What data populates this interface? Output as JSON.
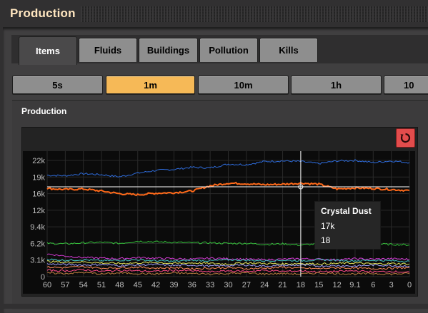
{
  "window": {
    "title": "Production"
  },
  "tabs": [
    {
      "label": "Items",
      "active": true
    },
    {
      "label": "Fluids",
      "active": false
    },
    {
      "label": "Buildings",
      "active": false
    },
    {
      "label": "Pollution",
      "active": false
    },
    {
      "label": "Kills",
      "active": false
    }
  ],
  "time_buttons": [
    {
      "label": "5s",
      "selected": false
    },
    {
      "label": "1m",
      "selected": true
    },
    {
      "label": "10m",
      "selected": false
    },
    {
      "label": "1h",
      "selected": false
    },
    {
      "label": "10",
      "selected": false
    }
  ],
  "panel": {
    "label": "Production",
    "reset_icon": "reset-icon"
  },
  "tooltip": {
    "title": "Crystal Dust",
    "value": "17k",
    "count": "18"
  },
  "colors": {
    "accent": "#f6b957",
    "reset": "#e24c4c",
    "blue": "#2e6bd9",
    "orange": "#ff6a1a",
    "green": "#34c23a"
  },
  "chart_data": {
    "type": "line",
    "xlabel": "",
    "ylabel": "",
    "x_ticks": [
      "60",
      "57",
      "54",
      "51",
      "48",
      "45",
      "42",
      "39",
      "36",
      "33",
      "30",
      "27",
      "24",
      "21",
      "18",
      "15",
      "12",
      "9.1",
      "6",
      "3",
      "0"
    ],
    "y_ticks": [
      "0",
      "3.1k",
      "6.2k",
      "9.4k",
      "12k",
      "16k",
      "19k",
      "22k"
    ],
    "ylim": [
      0,
      22000
    ],
    "xlim": [
      60,
      0
    ],
    "grid": true,
    "crosshair": {
      "x": 18,
      "y": 17000
    },
    "series": [
      {
        "color": "#2e6bd9",
        "x": [
          60,
          57,
          54,
          51,
          48,
          45,
          42,
          39,
          36,
          33,
          30,
          27,
          24,
          21,
          18,
          15,
          12,
          9,
          6,
          3,
          0
        ],
        "values": [
          19200,
          19100,
          19500,
          19300,
          18900,
          19600,
          20100,
          20300,
          20700,
          20600,
          21300,
          21200,
          21800,
          21900,
          21800,
          21400,
          21900,
          22000,
          21600,
          21900,
          21600
        ]
      },
      {
        "color": "#ff6a1a",
        "x": [
          60,
          57,
          54,
          51,
          48,
          45,
          42,
          39,
          36,
          33,
          30,
          27,
          24,
          21,
          18,
          15,
          12,
          9,
          6,
          3,
          0
        ],
        "values": [
          16700,
          16500,
          16600,
          16200,
          15700,
          15500,
          15800,
          15900,
          16200,
          17200,
          17700,
          17600,
          17400,
          17500,
          17700,
          17500,
          16600,
          16800,
          16700,
          16500,
          16300
        ]
      },
      {
        "color": "#34c23a",
        "x": [
          60,
          57,
          54,
          51,
          48,
          45,
          42,
          39,
          36,
          33,
          30,
          27,
          24,
          21,
          18,
          15,
          12,
          9,
          6,
          3,
          0
        ],
        "values": [
          6300,
          6200,
          6400,
          6500,
          6300,
          6700,
          6600,
          6500,
          6400,
          6400,
          6300,
          6300,
          6100,
          6200,
          6000,
          6200,
          6100,
          6000,
          6200,
          6100,
          6000
        ]
      },
      {
        "color": "#d43ad4",
        "x": [
          60,
          57,
          54,
          51,
          48,
          45,
          42,
          39,
          36,
          33,
          30,
          27,
          24,
          21,
          18,
          15,
          12,
          9,
          6,
          3,
          0
        ],
        "values": [
          4300,
          3900,
          3600,
          3500,
          3400,
          3600,
          3500,
          3400,
          3300,
          3500,
          3400,
          3300,
          3200,
          3300,
          3400,
          3300,
          3200,
          3400,
          3300,
          3400,
          3300
        ]
      },
      {
        "color": "#3fc0c0",
        "x": [
          60,
          57,
          54,
          51,
          48,
          45,
          42,
          39,
          36,
          33,
          30,
          27,
          24,
          21,
          18,
          15,
          12,
          9,
          6,
          3,
          0
        ],
        "values": [
          3300,
          3100,
          3200,
          3000,
          3100,
          3200,
          3000,
          2900,
          3100,
          3000,
          3200,
          3100,
          3000,
          3100,
          3000,
          3200,
          3100,
          3000,
          3100,
          3000,
          2900
        ]
      },
      {
        "color": "#e8e85a",
        "x": [
          60,
          57,
          54,
          51,
          48,
          45,
          42,
          39,
          36,
          33,
          30,
          27,
          24,
          21,
          18,
          15,
          12,
          9,
          6,
          3,
          0
        ],
        "values": [
          2900,
          2700,
          2800,
          2600,
          2500,
          2600,
          2700,
          2500,
          2600,
          2500,
          2400,
          2600,
          2500,
          2400,
          2500,
          2400,
          2500,
          2600,
          2400,
          2500,
          2400
        ]
      },
      {
        "color": "#a0a0ff",
        "x": [
          60,
          57,
          54,
          51,
          48,
          45,
          42,
          39,
          36,
          33,
          30,
          27,
          24,
          21,
          18,
          15,
          12,
          9,
          6,
          3,
          0
        ],
        "values": [
          2400,
          2300,
          2200,
          2300,
          2100,
          2200,
          2300,
          2100,
          2200,
          2000,
          2100,
          2200,
          2000,
          2100,
          2200,
          2000,
          2100,
          2000,
          2200,
          2100,
          2000
        ]
      },
      {
        "color": "#ff8c5a",
        "x": [
          60,
          57,
          54,
          51,
          48,
          45,
          42,
          39,
          36,
          33,
          30,
          27,
          24,
          21,
          18,
          15,
          12,
          9,
          6,
          3,
          0
        ],
        "values": [
          1800,
          1700,
          1900,
          1600,
          1700,
          1800,
          1600,
          1700,
          1500,
          1600,
          1700,
          1500,
          1600,
          1800,
          1600,
          1500,
          1700,
          1600,
          1500,
          1600,
          1700
        ]
      },
      {
        "color": "#ff4a8a",
        "x": [
          60,
          57,
          54,
          51,
          48,
          45,
          42,
          39,
          36,
          33,
          30,
          27,
          24,
          21,
          18,
          15,
          12,
          9,
          6,
          3,
          0
        ],
        "values": [
          1200,
          1100,
          1300,
          1000,
          1200,
          1100,
          1000,
          1200,
          1100,
          900,
          1100,
          1000,
          1200,
          1000,
          1100,
          900,
          1000,
          1100,
          900,
          1000,
          800
        ]
      },
      {
        "color": "#c08040",
        "x": [
          60,
          57,
          54,
          51,
          48,
          45,
          42,
          39,
          36,
          33,
          30,
          27,
          24,
          21,
          18,
          15,
          12,
          9,
          6,
          3,
          0
        ],
        "values": [
          700,
          600,
          800,
          500,
          700,
          600,
          500,
          700,
          600,
          500,
          600,
          700,
          500,
          600,
          500,
          700,
          600,
          500,
          600,
          500,
          600
        ]
      }
    ]
  }
}
